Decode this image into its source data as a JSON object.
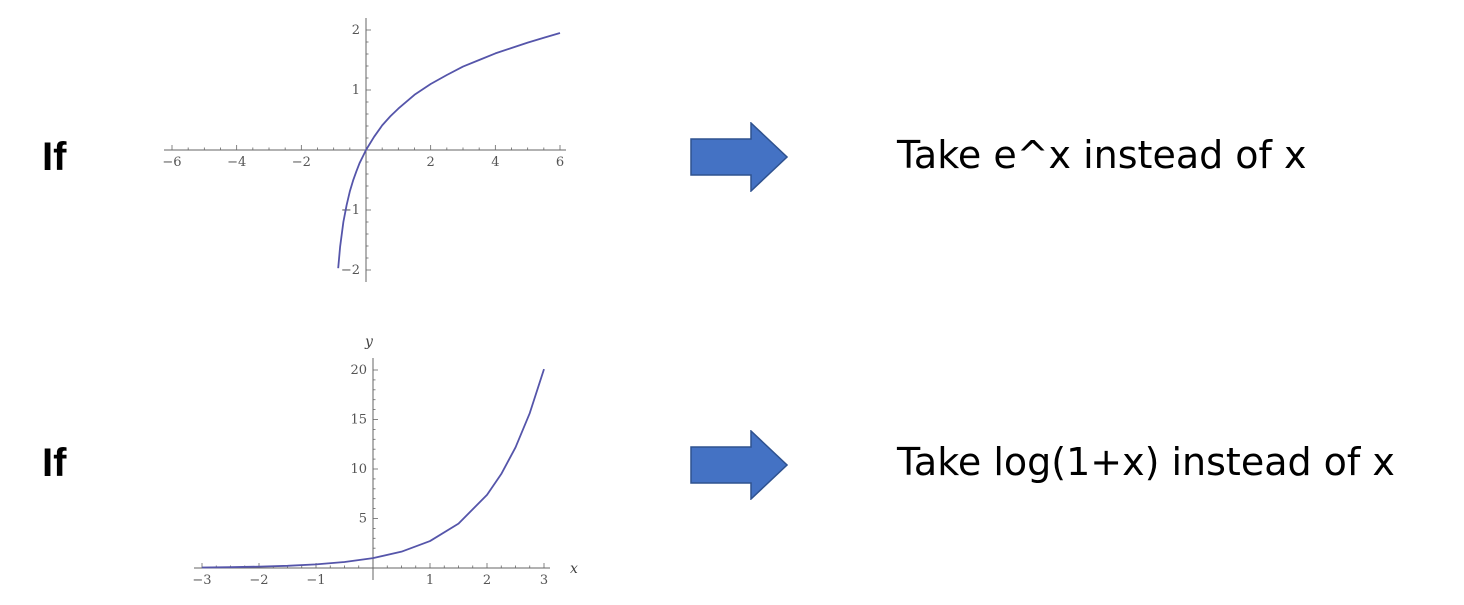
{
  "rows": [
    {
      "if_label": "If",
      "action": "Take e^x instead of x"
    },
    {
      "if_label": "If",
      "action": "Take log(1+x) instead of x"
    }
  ],
  "colors": {
    "curve": "#5555aa",
    "axis": "#666666",
    "arrow": "#4472c4",
    "arrow_border": "#2f528f"
  },
  "chart_data": [
    {
      "type": "line",
      "title": "",
      "xlabel": "",
      "ylabel": "",
      "xlim": [
        -6,
        6
      ],
      "ylim": [
        -2,
        2
      ],
      "x_ticks": [
        -6,
        -4,
        -2,
        2,
        4,
        6
      ],
      "y_ticks": [
        -2,
        -1,
        1,
        2
      ],
      "x_tick_labels": [
        "−6",
        "−4",
        "−2",
        "2",
        "4",
        "6"
      ],
      "y_tick_labels": [
        "−2",
        "−1",
        "1",
        "2"
      ],
      "grid": false,
      "series": [
        {
          "x": [
            -0.86,
            -0.8,
            -0.7,
            -0.6,
            -0.5,
            -0.4,
            -0.3,
            -0.2,
            -0.1,
            0,
            0.25,
            0.5,
            0.75,
            1,
            1.5,
            2,
            2.5,
            3,
            3.5,
            4,
            4.5,
            5,
            5.5,
            6
          ],
          "y": [
            -1.97,
            -1.61,
            -1.2,
            -0.92,
            -0.69,
            -0.51,
            -0.36,
            -0.22,
            -0.11,
            0,
            0.22,
            0.41,
            0.56,
            0.69,
            0.92,
            1.1,
            1.25,
            1.39,
            1.5,
            1.61,
            1.7,
            1.79,
            1.87,
            1.95
          ]
        }
      ]
    },
    {
      "type": "line",
      "title": "",
      "xlabel": "x",
      "ylabel": "y",
      "xlim": [
        -3,
        3
      ],
      "ylim": [
        0,
        20
      ],
      "x_ticks": [
        -3,
        -2,
        -1,
        1,
        2,
        3
      ],
      "y_ticks": [
        5,
        10,
        15,
        20
      ],
      "x_tick_labels": [
        "−3",
        "−2",
        "−1",
        "1",
        "2",
        "3"
      ],
      "y_tick_labels": [
        "5",
        "10",
        "15",
        "20"
      ],
      "grid": false,
      "series": [
        {
          "x": [
            -3,
            -2.5,
            -2,
            -1.5,
            -1,
            -0.5,
            0,
            0.5,
            1,
            1.5,
            2,
            2.25,
            2.5,
            2.75,
            3
          ],
          "y": [
            0.05,
            0.08,
            0.14,
            0.22,
            0.37,
            0.61,
            1,
            1.65,
            2.72,
            4.48,
            7.39,
            9.49,
            12.18,
            15.64,
            20.09
          ]
        }
      ]
    }
  ]
}
